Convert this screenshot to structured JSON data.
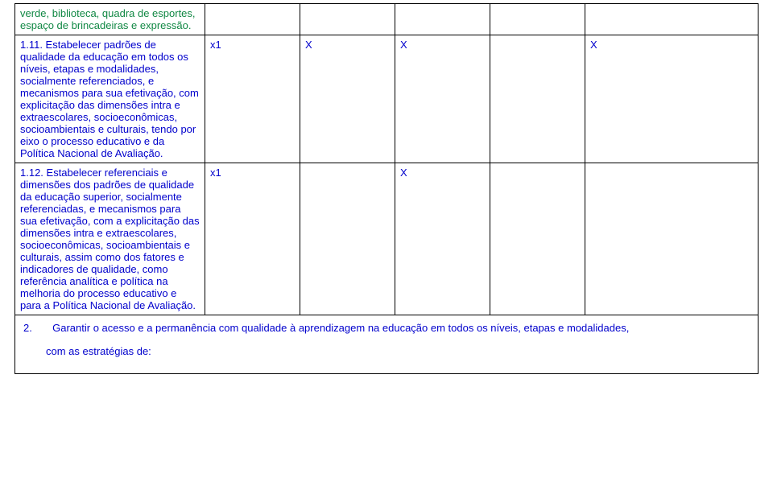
{
  "rows": [
    {
      "desc_green": "verde, biblioteca, quadra de esportes, espaço de brincadeiras e expressão.",
      "a": "",
      "b": "",
      "c": "",
      "d": "",
      "e": ""
    },
    {
      "desc": "1.11. Estabelecer padrões de qualidade da educação em todos os níveis, etapas e modalidades, socialmente referenciados, e mecanismos para sua efetivação, com explicitação das dimensões intra e extraescolares, socioeconômicas, socioambientais e culturais, tendo por eixo o processo educativo e da Política Nacional de Avaliação.",
      "a": "x1",
      "b": "X",
      "c": "X",
      "d": "",
      "e": "X"
    },
    {
      "desc": "1.12. Estabelecer referenciais e dimensões dos padrões de qualidade da educação superior, socialmente referenciadas, e mecanismos para sua efetivação, com a explicitação das dimensões intra e extraescolares, socioeconômicas, socioambientais e culturais, assim como dos fatores e indicadores de qualidade, como referência analítica e política na melhoria do processo educativo e para a Política Nacional de Avaliação.",
      "a": "x1",
      "b": "",
      "c": "X",
      "d": "",
      "e": ""
    }
  ],
  "footer": {
    "num": "2.",
    "line1": "Garantir o acesso e a permanência com qualidade à aprendizagem na educação em todos os níveis, etapas e modalidades,",
    "line2": "com as estratégias de:"
  },
  "colors": {
    "border": "#000000",
    "blue": "#0000cc",
    "green": "#118844",
    "background": "#ffffff"
  }
}
